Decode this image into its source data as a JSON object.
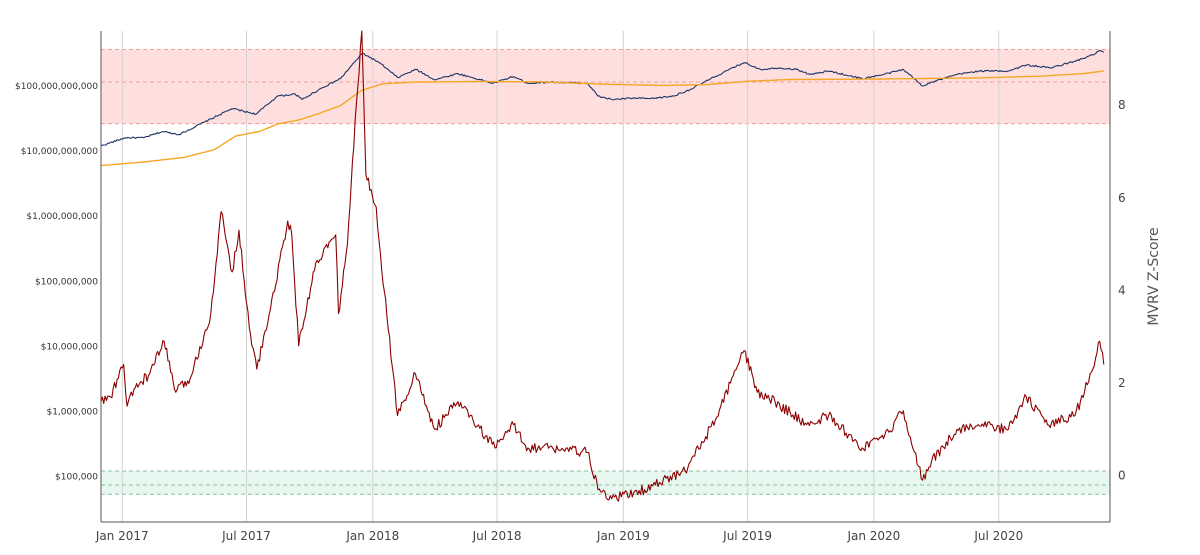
{
  "chart_data": {
    "type": "line",
    "title": "",
    "ylabel_right": "MVRV Z-Score",
    "x_range": [
      "2016-12-01",
      "2020-12-10"
    ],
    "x_ticks": [
      "Jan 2017",
      "Jul 2017",
      "Jan 2018",
      "Jul 2018",
      "Jan 2019",
      "Jul 2019",
      "Jan 2020",
      "Jul 2020"
    ],
    "y_left": {
      "scale": "log",
      "range": [
        20000,
        700000000000
      ],
      "ticks": [
        "$100,000",
        "$1,000,000",
        "$10,000,000",
        "$100,000,000",
        "$1,000,000,000",
        "$10,000,000,000",
        "$100,000,000,000"
      ]
    },
    "y_right": {
      "scale": "linear",
      "range": [
        -1,
        9.6
      ],
      "ticks": [
        0,
        2,
        4,
        6,
        8
      ]
    },
    "bands": [
      {
        "name": "red-zone",
        "axis": "right",
        "from": 7.6,
        "to": 9.2,
        "mid": 8.5,
        "color": "#ffdede",
        "line_color": "#f1a0a0"
      },
      {
        "name": "green-zone",
        "axis": "right",
        "from": -0.4,
        "to": 0.1,
        "mid": -0.2,
        "color": "#e6f8ef",
        "line_color": "#8cbf9f"
      }
    ],
    "series": [
      {
        "axis": "left",
        "color": "#1c3566",
        "points": [
          [
            "2016-12-01",
            12000000000.0
          ],
          [
            "2017-01-05",
            16000000000.0
          ],
          [
            "2017-02-01",
            16000000000.0
          ],
          [
            "2017-03-01",
            20000000000.0
          ],
          [
            "2017-03-25",
            18000000000.0
          ],
          [
            "2017-05-01",
            28000000000.0
          ],
          [
            "2017-06-10",
            45000000000.0
          ],
          [
            "2017-07-15",
            37000000000.0
          ],
          [
            "2017-08-15",
            70000000000.0
          ],
          [
            "2017-09-10",
            75000000000.0
          ],
          [
            "2017-09-20",
            62000000000.0
          ],
          [
            "2017-10-20",
            95000000000.0
          ],
          [
            "2017-11-15",
            130000000000.0
          ],
          [
            "2017-12-08",
            250000000000.0
          ],
          [
            "2017-12-17",
            320000000000.0
          ],
          [
            "2018-01-10",
            230000000000.0
          ],
          [
            "2018-02-06",
            135000000000.0
          ],
          [
            "2018-03-05",
            180000000000.0
          ],
          [
            "2018-04-01",
            125000000000.0
          ],
          [
            "2018-05-05",
            155000000000.0
          ],
          [
            "2018-06-25",
            110000000000.0
          ],
          [
            "2018-07-25",
            140000000000.0
          ],
          [
            "2018-08-15",
            110000000000.0
          ],
          [
            "2018-09-15",
            115000000000.0
          ],
          [
            "2018-11-10",
            110000000000.0
          ],
          [
            "2018-11-25",
            70000000000.0
          ],
          [
            "2018-12-15",
            62000000000.0
          ],
          [
            "2019-01-15",
            65000000000.0
          ],
          [
            "2019-02-10",
            64000000000.0
          ],
          [
            "2019-03-15",
            70000000000.0
          ],
          [
            "2019-04-10",
            90000000000.0
          ],
          [
            "2019-05-15",
            140000000000.0
          ],
          [
            "2019-06-26",
            230000000000.0
          ],
          [
            "2019-07-20",
            180000000000.0
          ],
          [
            "2019-08-15",
            190000000000.0
          ],
          [
            "2019-09-10",
            180000000000.0
          ],
          [
            "2019-10-01",
            150000000000.0
          ],
          [
            "2019-10-27",
            170000000000.0
          ],
          [
            "2019-12-15",
            130000000000.0
          ],
          [
            "2020-01-15",
            150000000000.0
          ],
          [
            "2020-02-13",
            180000000000.0
          ],
          [
            "2020-03-12",
            100000000000.0
          ],
          [
            "2020-03-20",
            110000000000.0
          ],
          [
            "2020-05-01",
            150000000000.0
          ],
          [
            "2020-06-01",
            170000000000.0
          ],
          [
            "2020-07-15",
            170000000000.0
          ],
          [
            "2020-08-10",
            210000000000.0
          ],
          [
            "2020-09-15",
            190000000000.0
          ],
          [
            "2020-10-20",
            240000000000.0
          ],
          [
            "2020-11-15",
            300000000000.0
          ],
          [
            "2020-11-25",
            350000000000.0
          ],
          [
            "2020-12-01",
            330000000000.0
          ]
        ]
      },
      {
        "axis": "left",
        "color": "#f5a623",
        "points": [
          [
            "2016-12-01",
            6000000000.0
          ],
          [
            "2017-02-01",
            6800000000.0
          ],
          [
            "2017-04-01",
            8000000000.0
          ],
          [
            "2017-05-15",
            10500000000.0
          ],
          [
            "2017-06-15",
            17000000000.0
          ],
          [
            "2017-07-20",
            20000000000.0
          ],
          [
            "2017-08-15",
            26000000000.0
          ],
          [
            "2017-09-15",
            30000000000.0
          ],
          [
            "2017-10-15",
            38000000000.0
          ],
          [
            "2017-11-15",
            50000000000.0
          ],
          [
            "2017-12-15",
            85000000000.0
          ],
          [
            "2018-01-15",
            108000000000.0
          ],
          [
            "2018-03-01",
            115000000000.0
          ],
          [
            "2018-06-01",
            117000000000.0
          ],
          [
            "2018-09-01",
            116000000000.0
          ],
          [
            "2018-12-15",
            106000000000.0
          ],
          [
            "2019-03-01",
            102000000000.0
          ],
          [
            "2019-05-01",
            105000000000.0
          ],
          [
            "2019-07-01",
            118000000000.0
          ],
          [
            "2019-09-01",
            126000000000.0
          ],
          [
            "2019-12-01",
            127000000000.0
          ],
          [
            "2020-03-01",
            130000000000.0
          ],
          [
            "2020-06-01",
            133000000000.0
          ],
          [
            "2020-09-01",
            142000000000.0
          ],
          [
            "2020-11-01",
            155000000000.0
          ],
          [
            "2020-12-01",
            170000000000.0
          ]
        ]
      },
      {
        "axis": "right",
        "color": "#8b0000",
        "points": [
          [
            "2016-12-01",
            1.6
          ],
          [
            "2016-12-15",
            1.7
          ],
          [
            "2017-01-03",
            2.4
          ],
          [
            "2017-01-08",
            1.5
          ],
          [
            "2017-01-20",
            1.9
          ],
          [
            "2017-02-10",
            2.2
          ],
          [
            "2017-03-03",
            2.9
          ],
          [
            "2017-03-20",
            1.8
          ],
          [
            "2017-04-10",
            2.1
          ],
          [
            "2017-05-10",
            3.5
          ],
          [
            "2017-05-25",
            5.7
          ],
          [
            "2017-06-10",
            4.4
          ],
          [
            "2017-06-20",
            5.3
          ],
          [
            "2017-07-05",
            3.2
          ],
          [
            "2017-07-16",
            2.3
          ],
          [
            "2017-08-05",
            3.6
          ],
          [
            "2017-08-30",
            5.5
          ],
          [
            "2017-09-05",
            5.2
          ],
          [
            "2017-09-15",
            2.8
          ],
          [
            "2017-10-10",
            4.6
          ],
          [
            "2017-11-08",
            5.2
          ],
          [
            "2017-11-12",
            3.5
          ],
          [
            "2017-11-25",
            5.0
          ],
          [
            "2017-12-08",
            8.0
          ],
          [
            "2017-12-16",
            9.6
          ],
          [
            "2017-12-22",
            6.5
          ],
          [
            "2018-01-06",
            5.8
          ],
          [
            "2018-01-12",
            4.8
          ],
          [
            "2018-02-06",
            1.3
          ],
          [
            "2018-03-04",
            2.2
          ],
          [
            "2018-04-01",
            1.0
          ],
          [
            "2018-05-05",
            1.6
          ],
          [
            "2018-06-28",
            0.6
          ],
          [
            "2018-07-25",
            1.1
          ],
          [
            "2018-08-15",
            0.6
          ],
          [
            "2018-09-20",
            0.6
          ],
          [
            "2018-11-10",
            0.5
          ],
          [
            "2018-11-25",
            -0.3
          ],
          [
            "2018-12-15",
            -0.5
          ],
          [
            "2019-02-01",
            -0.3
          ],
          [
            "2019-04-01",
            0.1
          ],
          [
            "2019-05-15",
            1.2
          ],
          [
            "2019-06-26",
            2.7
          ],
          [
            "2019-07-15",
            1.8
          ],
          [
            "2019-08-10",
            1.6
          ],
          [
            "2019-09-25",
            1.1
          ],
          [
            "2019-10-27",
            1.3
          ],
          [
            "2019-12-15",
            0.6
          ],
          [
            "2020-01-15",
            0.8
          ],
          [
            "2020-02-13",
            1.4
          ],
          [
            "2020-03-12",
            -0.1
          ],
          [
            "2020-03-25",
            0.3
          ],
          [
            "2020-05-01",
            1.0
          ],
          [
            "2020-06-01",
            1.1
          ],
          [
            "2020-07-15",
            1.0
          ],
          [
            "2020-08-10",
            1.7
          ],
          [
            "2020-09-10",
            1.1
          ],
          [
            "2020-10-20",
            1.3
          ],
          [
            "2020-11-15",
            2.3
          ],
          [
            "2020-11-25",
            2.9
          ],
          [
            "2020-12-01",
            2.4
          ]
        ]
      }
    ],
    "grid": true,
    "legend": "none"
  }
}
